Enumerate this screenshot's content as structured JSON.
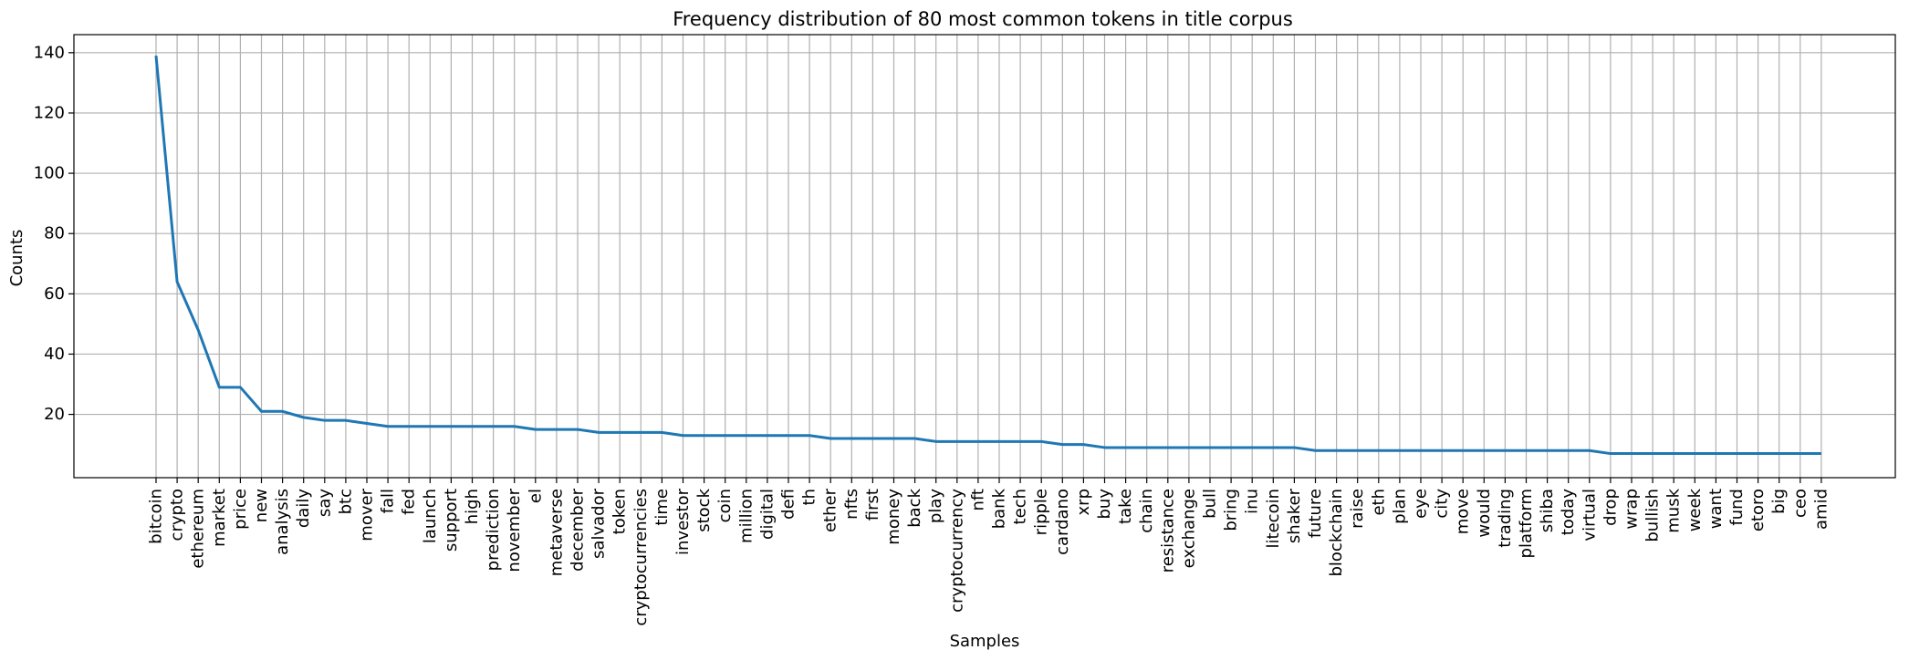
{
  "chart_data": {
    "type": "line",
    "title": "Frequency distribution of 80 most common tokens in title corpus",
    "xlabel": "Samples",
    "ylabel": "Counts",
    "grid": true,
    "ylim": [
      -1,
      146
    ],
    "yticks": [
      20,
      40,
      60,
      80,
      100,
      120,
      140
    ],
    "line_color": "#1f77b4",
    "categories": [
      "bitcoin",
      "crypto",
      "ethereum",
      "market",
      "price",
      "new",
      "analysis",
      "daily",
      "say",
      "btc",
      "mover",
      "fall",
      "fed",
      "launch",
      "support",
      "high",
      "prediction",
      "november",
      "el",
      "metaverse",
      "december",
      "salvador",
      "token",
      "cryptocurrencies",
      "time",
      "investor",
      "stock",
      "coin",
      "million",
      "digital",
      "defi",
      "th",
      "ether",
      "nfts",
      "first",
      "money",
      "back",
      "play",
      "cryptocurrency",
      "nft",
      "bank",
      "tech",
      "ripple",
      "cardano",
      "xrp",
      "buy",
      "take",
      "chain",
      "resistance",
      "exchange",
      "bull",
      "bring",
      "inu",
      "litecoin",
      "shaker",
      "future",
      "blockchain",
      "raise",
      "eth",
      "plan",
      "eye",
      "city",
      "move",
      "would",
      "trading",
      "platform",
      "shiba",
      "today",
      "virtual",
      "drop",
      "wrap",
      "bullish",
      "musk",
      "week",
      "want",
      "fund",
      "etoro",
      "big",
      "ceo",
      "amid"
    ],
    "values": [
      139,
      64,
      48,
      29,
      29,
      21,
      21,
      19,
      18,
      18,
      17,
      16,
      16,
      16,
      16,
      16,
      16,
      16,
      15,
      15,
      15,
      14,
      14,
      14,
      14,
      13,
      13,
      13,
      13,
      13,
      13,
      13,
      12,
      12,
      12,
      12,
      12,
      11,
      11,
      11,
      11,
      11,
      11,
      10,
      10,
      9,
      9,
      9,
      9,
      9,
      9,
      9,
      9,
      9,
      9,
      8,
      8,
      8,
      8,
      8,
      8,
      8,
      8,
      8,
      8,
      8,
      8,
      8,
      8,
      7,
      7,
      7,
      7,
      7,
      7,
      7,
      7,
      7,
      7,
      7
    ]
  }
}
